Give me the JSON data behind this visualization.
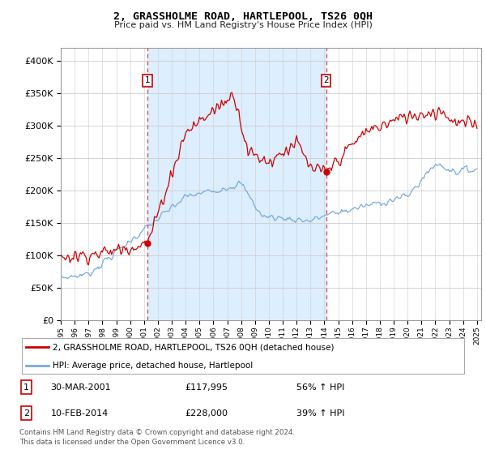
{
  "title": "2, GRASSHOLME ROAD, HARTLEPOOL, TS26 0QH",
  "subtitle": "Price paid vs. HM Land Registry's House Price Index (HPI)",
  "legend_label_red": "2, GRASSHOLME ROAD, HARTLEPOOL, TS26 0QH (detached house)",
  "legend_label_blue": "HPI: Average price, detached house, Hartlepool",
  "sale1_date": "30-MAR-2001",
  "sale1_price": "£117,995",
  "sale1_hpi": "56% ↑ HPI",
  "sale2_date": "10-FEB-2014",
  "sale2_price": "£228,000",
  "sale2_hpi": "39% ↑ HPI",
  "footer": "Contains HM Land Registry data © Crown copyright and database right 2024.\nThis data is licensed under the Open Government Licence v3.0.",
  "ylim_min": 0,
  "ylim_max": 420000,
  "yticks": [
    0,
    50000,
    100000,
    150000,
    200000,
    250000,
    300000,
    350000,
    400000
  ],
  "sale1_year": 2001.25,
  "sale1_value": 117995,
  "sale2_year": 2014.12,
  "sale2_value": 228000,
  "vline_color": "#dd4444",
  "red_line_color": "#cc0000",
  "blue_line_color": "#7aaadd",
  "shade_color": "#ddeeff",
  "bg_color": "#f0f5ff"
}
